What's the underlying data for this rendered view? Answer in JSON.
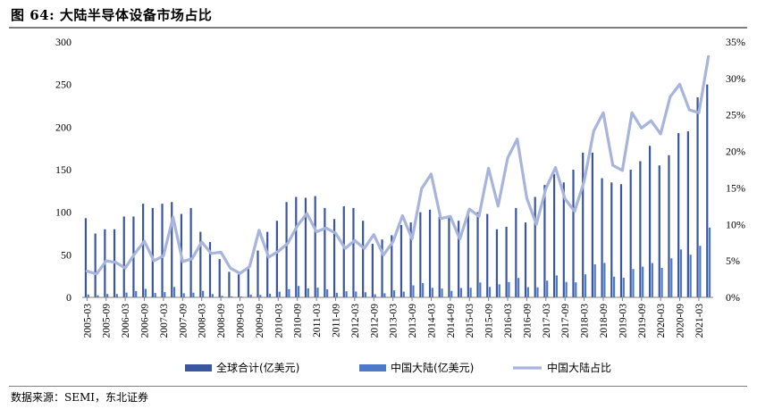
{
  "title": "图 64:  大陆半导体设备市场占比",
  "source": "数据来源：SEMI，东北证券",
  "colors": {
    "global": "#3a56a0",
    "china": "#4d79c7",
    "share": "#a7b4dc"
  },
  "chart_data": {
    "type": "bar",
    "categories": [
      "2005-03",
      "2005-06",
      "2005-09",
      "2005-12",
      "2006-03",
      "2006-06",
      "2006-09",
      "2006-12",
      "2007-03",
      "2007-06",
      "2007-09",
      "2007-12",
      "2008-03",
      "2008-06",
      "2008-09",
      "2008-12",
      "2009-03",
      "2009-06",
      "2009-09",
      "2009-12",
      "2010-03",
      "2010-06",
      "2010-09",
      "2010-12",
      "2011-03",
      "2011-06",
      "2011-09",
      "2011-12",
      "2012-03",
      "2012-06",
      "2012-09",
      "2012-12",
      "2013-03",
      "2013-06",
      "2013-09",
      "2013-12",
      "2014-03",
      "2014-06",
      "2014-09",
      "2014-12",
      "2015-03",
      "2015-06",
      "2015-09",
      "2015-12",
      "2016-03",
      "2016-06",
      "2016-09",
      "2016-12",
      "2017-03",
      "2017-06",
      "2017-09",
      "2017-12",
      "2018-03",
      "2018-06",
      "2018-09",
      "2018-12",
      "2019-03",
      "2019-06",
      "2019-09",
      "2019-12",
      "2020-03",
      "2020-06",
      "2020-09",
      "2020-12",
      "2021-03",
      "2021-06"
    ],
    "x_tick_labels": [
      "2005-03",
      "2005-09",
      "2006-03",
      "2006-09",
      "2007-03",
      "2007-09",
      "2008-03",
      "2008-09",
      "2009-03",
      "2009-09",
      "2010-03",
      "2010-09",
      "2011-03",
      "2011-09",
      "2012-03",
      "2012-09",
      "2013-03",
      "2013-09",
      "2014-03",
      "2014-09",
      "2015-03",
      "2015-09",
      "2016-03",
      "2016-09",
      "2017-03",
      "2017-09",
      "2018-03",
      "2018-09",
      "2019-03",
      "2019-09",
      "2020-03",
      "2020-09",
      "2021-03"
    ],
    "series": [
      {
        "name": "全球合计(亿美元)",
        "axis": "left",
        "type": "bar",
        "values": [
          93,
          75,
          80,
          80,
          95,
          95,
          110,
          105,
          110,
          112,
          98,
          105,
          77,
          65,
          45,
          30,
          27,
          35,
          55,
          77,
          90,
          112,
          118,
          117,
          119,
          105,
          92,
          107,
          105,
          90,
          63,
          68,
          73,
          85,
          88,
          100,
          103,
          95,
          95,
          90,
          102,
          100,
          98,
          80,
          83,
          105,
          88,
          118,
          132,
          145,
          135,
          150,
          170,
          170,
          140,
          135,
          133,
          150,
          160,
          178,
          155,
          167,
          193,
          195,
          235,
          250
        ]
      },
      {
        "name": "中国大陆(亿美元)",
        "axis": "left",
        "type": "bar",
        "values": [
          3.4,
          2.4,
          4.0,
          3.9,
          5.6,
          7.5,
          10.0,
          5.2,
          6.2,
          12.2,
          4.8,
          5.5,
          7.6,
          3.9,
          1.8,
          1.2,
          1.1,
          3.2,
          2.9,
          4.3,
          6.6,
          9.7,
          13.4,
          10.5,
          11.4,
          9.4,
          5.4,
          7.2,
          6.9,
          6.0,
          3.6,
          4.8,
          8.2,
          6.8,
          14.1,
          16.9,
          11.2,
          10.3,
          7.6,
          11.0,
          11.3,
          17.5,
          12.2,
          15.3,
          18.0,
          22.8,
          12.0,
          11.8,
          19.7,
          25.8,
          18.2,
          17.7,
          27.0,
          38.8,
          40.5,
          24.3,
          23.1,
          33.3,
          36.0,
          40.3,
          34.6,
          45.9,
          56.3,
          50.1,
          60.6,
          82.0
        ]
      },
      {
        "name": "中国大陆占比",
        "axis": "right",
        "type": "line",
        "values": [
          3.6,
          3.2,
          5.0,
          4.8,
          4.0,
          6.0,
          7.7,
          5.0,
          5.7,
          11.0,
          4.9,
          5.3,
          7.6,
          6.0,
          6.2,
          4.0,
          3.3,
          4.2,
          9.2,
          5.5,
          6.3,
          7.4,
          9.8,
          11.5,
          9.0,
          9.5,
          8.8,
          6.7,
          7.8,
          6.7,
          8.6,
          5.8,
          7.6,
          11.2,
          8.0,
          14.9,
          16.9,
          10.8,
          11.1,
          8.0,
          12.1,
          11.1,
          17.7,
          12.5,
          19.1,
          21.7,
          13.6,
          10.0,
          14.9,
          17.8,
          13.5,
          11.8,
          15.9,
          22.8,
          25.3,
          18.1,
          17.4,
          25.3,
          23.2,
          24.2,
          22.4,
          27.5,
          29.2,
          25.7,
          25.3,
          33.0
        ]
      }
    ],
    "ylim_left": [
      0,
      300
    ],
    "yticks_left": [
      "0",
      "50",
      "100",
      "150",
      "200",
      "250",
      "300"
    ],
    "ylim_right": [
      0,
      35
    ],
    "yticks_right": [
      "0%",
      "5%",
      "10%",
      "15%",
      "20%",
      "25%",
      "30%",
      "35%"
    ],
    "grid": false,
    "legend_position": "bottom"
  }
}
